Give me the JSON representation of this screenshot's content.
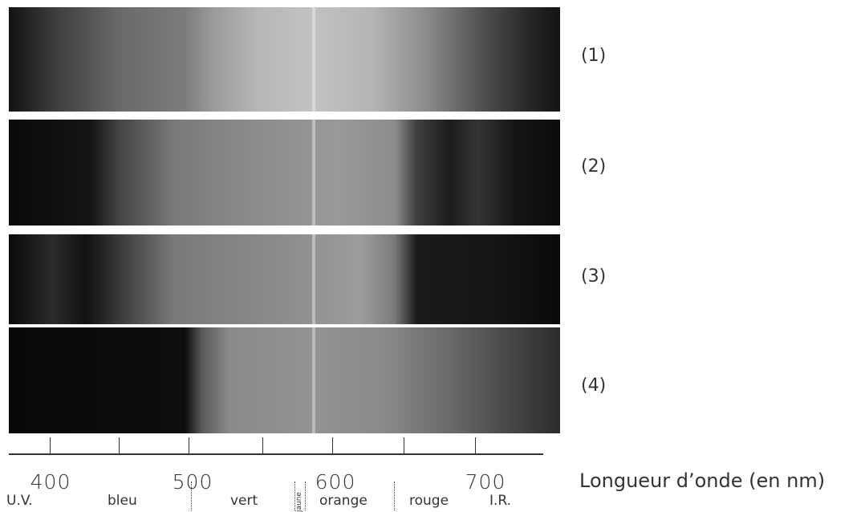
{
  "spectra": [
    {
      "label": "(1)"
    },
    {
      "label": "(2)"
    },
    {
      "label": "(3)"
    },
    {
      "label": "(4)"
    }
  ],
  "axis": {
    "title": "Longueur d’onde (en nm)",
    "tick_labels": [
      "400",
      "500",
      "600",
      "700"
    ],
    "bands": [
      "U.V.",
      "bleu",
      "vert",
      "jaune",
      "orange",
      "rouge",
      "I.R."
    ]
  }
}
